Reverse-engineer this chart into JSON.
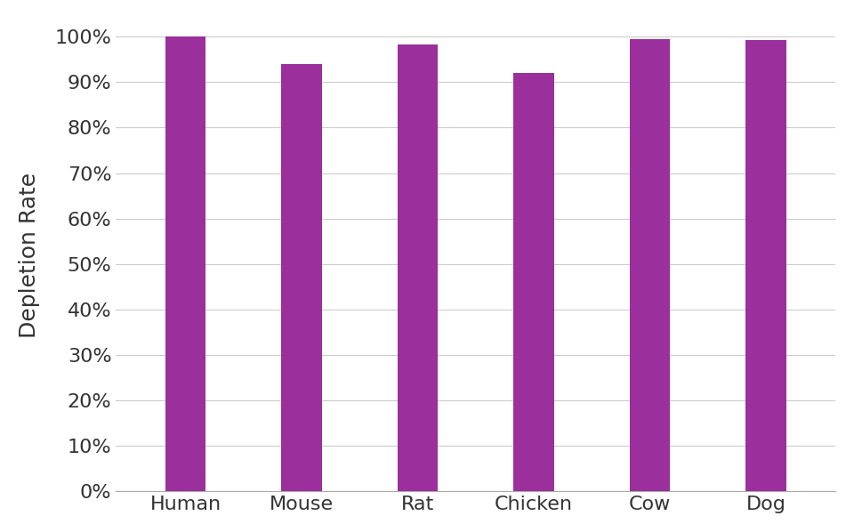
{
  "categories": [
    "Human",
    "Mouse",
    "Rat",
    "Chicken",
    "Cow",
    "Dog"
  ],
  "values": [
    1.0,
    0.94,
    0.982,
    0.92,
    0.995,
    0.992
  ],
  "bar_color": "#9B2F9B",
  "ylabel": "Depletion Rate",
  "ylim": [
    0,
    1.04
  ],
  "yticks": [
    0.0,
    0.1,
    0.2,
    0.3,
    0.4,
    0.5,
    0.6,
    0.7,
    0.8,
    0.9,
    1.0
  ],
  "background_color": "#ffffff",
  "grid_color": "#cccccc",
  "bar_width": 0.35,
  "ylabel_fontsize": 18,
  "tick_fontsize": 16,
  "x_bottom_line_color": "#aaaaaa"
}
